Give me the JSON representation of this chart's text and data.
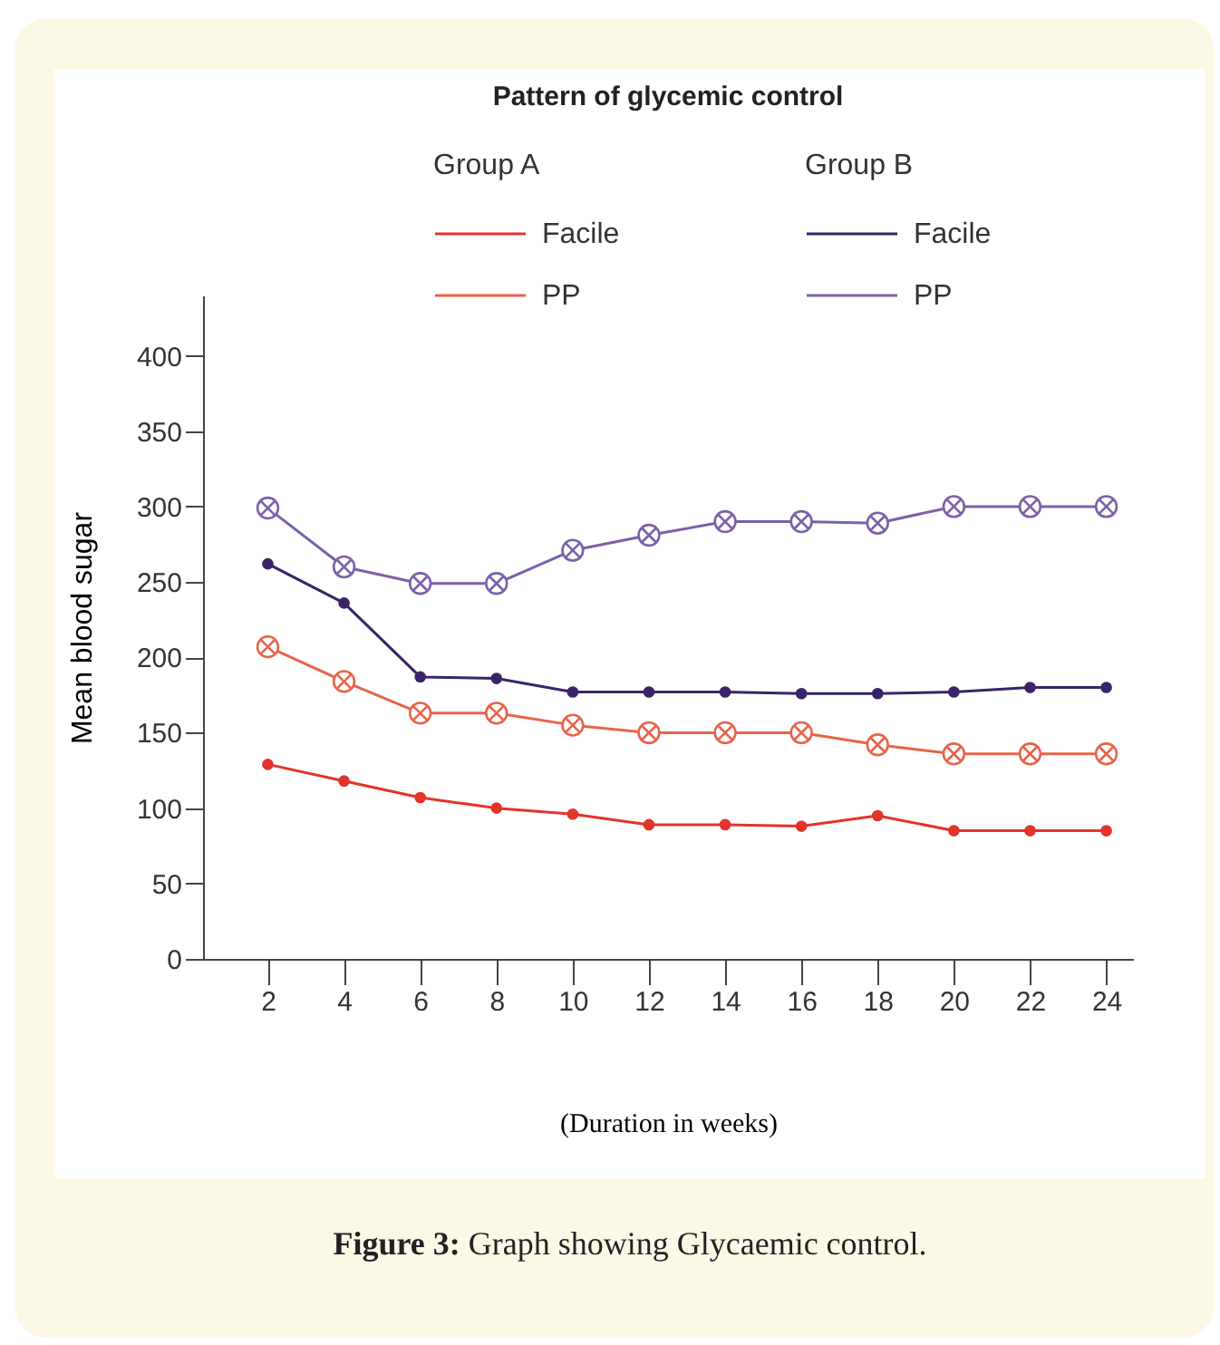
{
  "chart_data": {
    "type": "line",
    "title": "Pattern of glycemic control",
    "xlabel": "(Duration in weeks)",
    "ylabel": "Mean blood sugar",
    "annotations": [
      "Group A",
      "Group B",
      "Figure 3: Graph showing Glycaemic control."
    ],
    "x": [
      2,
      4,
      6,
      8,
      10,
      12,
      14,
      16,
      18,
      20,
      22,
      24
    ],
    "series": [
      {
        "name": "Facile",
        "color": "#e2342b",
        "marker": "circle",
        "values": [
          129,
          118,
          107,
          100,
          96,
          89,
          89,
          88,
          95,
          85,
          85,
          85
        ]
      },
      {
        "name": "PP",
        "color": "#e8644a",
        "marker": "cross",
        "values": [
          207,
          184,
          163,
          163,
          155,
          150,
          150,
          150,
          142,
          136,
          136,
          136
        ]
      },
      {
        "name": "Facile",
        "color": "#3a2468",
        "marker": "circle",
        "values": [
          262,
          236,
          187,
          186,
          177,
          177,
          177,
          176,
          176,
          177,
          180,
          180
        ]
      },
      {
        "name": "PP",
        "color": "#7c60a8",
        "marker": "cross",
        "values": [
          299,
          260,
          249,
          249,
          271,
          281,
          290,
          290,
          289,
          300,
          300,
          300
        ]
      }
    ],
    "xlim": [
      0.3,
      24.7
    ],
    "xticks": [
      2,
      4,
      6,
      8,
      10,
      12,
      14,
      16,
      18,
      20,
      22,
      24
    ],
    "ylim": [
      0,
      440
    ],
    "yticks": [
      0,
      50,
      100,
      150,
      200,
      250,
      300,
      350,
      400
    ],
    "grid": false,
    "legend": "top",
    "line_style": "solid"
  }
}
